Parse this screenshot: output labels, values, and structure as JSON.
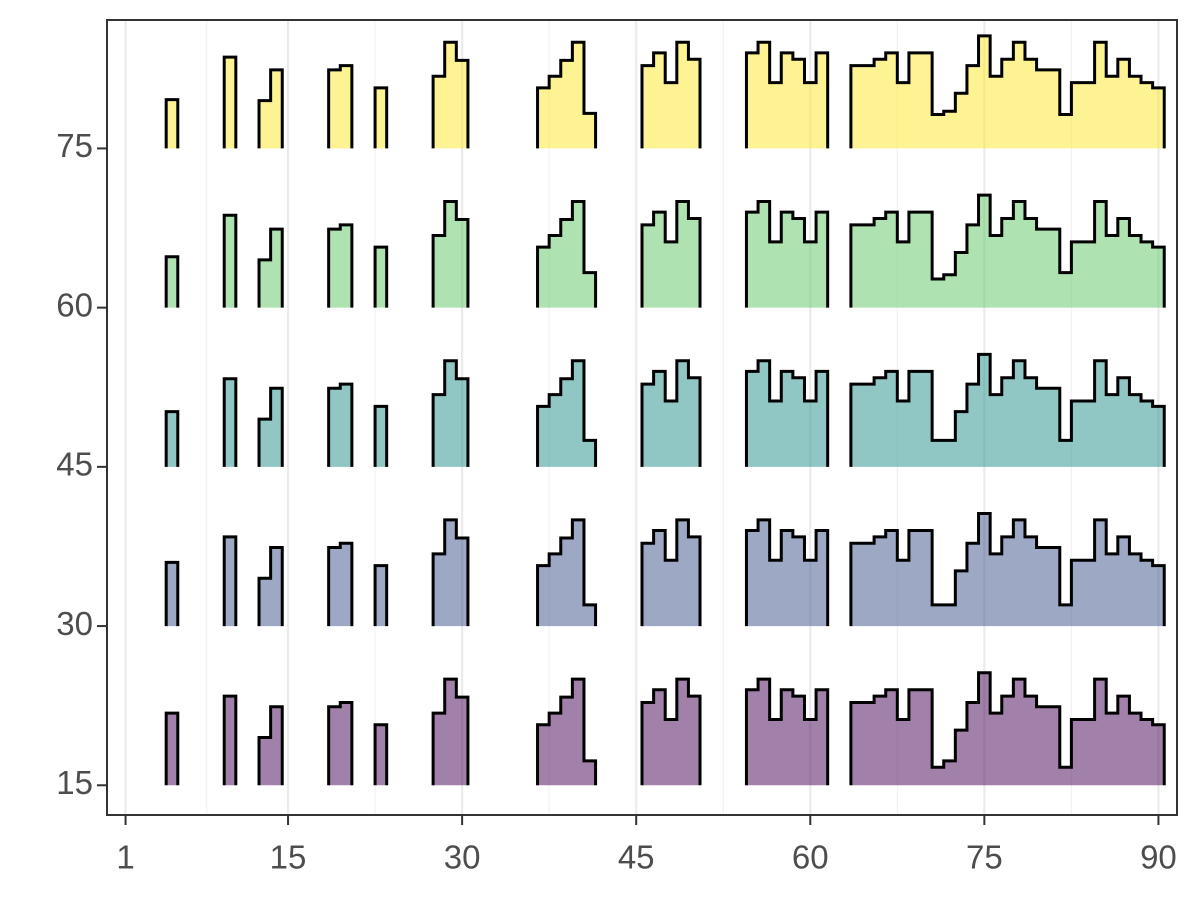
{
  "chart_data": {
    "type": "step",
    "x": [
      1,
      2,
      3,
      4,
      5,
      6,
      7,
      8,
      9,
      10,
      11,
      12,
      13,
      14,
      15,
      16,
      17,
      18,
      19,
      20,
      21,
      22,
      23,
      24,
      25,
      26,
      27,
      28,
      29,
      30,
      31,
      32,
      33,
      34,
      35,
      36,
      37,
      38,
      39,
      40,
      41,
      42,
      43,
      44,
      45,
      46,
      47,
      48,
      49,
      50,
      51,
      52,
      53,
      54,
      55,
      56,
      57,
      58,
      59,
      60,
      61,
      62,
      63,
      64,
      65,
      66,
      67,
      68,
      69,
      70,
      71,
      72,
      73,
      74,
      75,
      76,
      77,
      78,
      79,
      80,
      81,
      82,
      83,
      84,
      85,
      86,
      87,
      88,
      89,
      90
    ],
    "xlim": [
      -0.6,
      91.6
    ],
    "ylim": [
      12.2,
      87.1
    ],
    "xticks": [
      1,
      15,
      30,
      45,
      60,
      75,
      90
    ],
    "yticks": [
      15,
      30,
      45,
      60,
      75
    ],
    "grid": true,
    "series": [
      {
        "color": "#440154",
        "baseline": 15,
        "values": [
          null,
          null,
          null,
          null,
          21.8,
          null,
          null,
          null,
          null,
          23.4,
          null,
          null,
          19.5,
          22.4,
          null,
          null,
          null,
          null,
          22.4,
          22.8,
          null,
          null,
          20.7,
          null,
          null,
          null,
          null,
          21.8,
          25,
          23.3,
          null,
          null,
          null,
          null,
          null,
          null,
          20.7,
          21.8,
          23.3,
          25,
          17.3,
          null,
          null,
          null,
          null,
          22.8,
          24,
          21.2,
          25,
          23.4,
          null,
          null,
          null,
          null,
          24,
          25,
          21.2,
          24,
          23.4,
          21.2,
          24,
          null,
          null,
          22.8,
          22.8,
          23.4,
          24,
          21.2,
          24,
          24,
          16.7,
          17.3,
          20.2,
          22.8,
          25.6,
          21.8,
          23.4,
          25,
          23.4,
          22.4,
          22.4,
          16.7,
          21.2,
          21.2,
          25,
          21.8,
          23.4,
          21.8,
          21.2,
          20.7
        ]
      },
      {
        "color": "#3b528b",
        "baseline": 30,
        "values": [
          null,
          null,
          null,
          null,
          36,
          null,
          null,
          null,
          null,
          38.4,
          null,
          null,
          34.5,
          37.4,
          null,
          null,
          null,
          null,
          37.4,
          37.8,
          null,
          null,
          35.7,
          null,
          null,
          null,
          null,
          36.8,
          40,
          38.3,
          null,
          null,
          null,
          null,
          null,
          null,
          35.7,
          36.8,
          38.3,
          40,
          32,
          null,
          null,
          null,
          null,
          37.8,
          39,
          36.2,
          40,
          38.4,
          null,
          null,
          null,
          null,
          39,
          40,
          36.2,
          39,
          38.4,
          36.2,
          39,
          null,
          null,
          37.8,
          37.8,
          38.4,
          39,
          36.2,
          39,
          39,
          32,
          32,
          35.2,
          37.8,
          40.6,
          36.8,
          38.4,
          40,
          38.4,
          37.4,
          37.4,
          32,
          36.2,
          36.2,
          40,
          36.8,
          38.4,
          36.8,
          36.2,
          35.7
        ]
      },
      {
        "color": "#21908c",
        "baseline": 45,
        "values": [
          null,
          null,
          null,
          null,
          50.2,
          null,
          null,
          null,
          null,
          53.3,
          null,
          null,
          49.5,
          52.4,
          null,
          null,
          null,
          null,
          52.4,
          52.8,
          null,
          null,
          50.7,
          null,
          null,
          null,
          null,
          51.8,
          55,
          53.3,
          null,
          null,
          null,
          null,
          null,
          null,
          50.7,
          51.8,
          53.3,
          55,
          47.5,
          null,
          null,
          null,
          null,
          52.8,
          54,
          51.2,
          55,
          53.4,
          null,
          null,
          null,
          null,
          54,
          55,
          51.2,
          54,
          53.4,
          51.2,
          54,
          null,
          null,
          52.8,
          52.8,
          53.4,
          54,
          51.2,
          54,
          54,
          47.5,
          47.5,
          50.2,
          52.8,
          55.6,
          51.8,
          53.4,
          55,
          53.4,
          52.4,
          52.4,
          47.5,
          51.2,
          51.2,
          55,
          51.8,
          53.4,
          51.8,
          51.2,
          50.7
        ]
      },
      {
        "color": "#5dc863",
        "baseline": 60,
        "values": [
          null,
          null,
          null,
          null,
          64.8,
          null,
          null,
          null,
          null,
          68.7,
          null,
          null,
          64.5,
          67.4,
          null,
          null,
          null,
          null,
          67.4,
          67.8,
          null,
          null,
          65.7,
          null,
          null,
          null,
          null,
          66.8,
          70,
          68.3,
          null,
          null,
          null,
          null,
          null,
          null,
          65.7,
          66.8,
          68.3,
          70,
          63.3,
          null,
          null,
          null,
          null,
          67.8,
          69,
          66.2,
          70,
          68.4,
          null,
          null,
          null,
          null,
          69,
          70,
          66.2,
          69,
          68.4,
          66.2,
          69,
          null,
          null,
          67.8,
          67.8,
          68.4,
          69,
          66.2,
          69,
          69,
          62.7,
          63.1,
          65.2,
          67.8,
          70.6,
          66.8,
          68.4,
          70,
          68.4,
          67.4,
          67.4,
          63.3,
          66.2,
          66.2,
          70,
          66.8,
          68.4,
          66.8,
          66.2,
          65.7
        ]
      },
      {
        "color": "#fde725",
        "baseline": 75,
        "values": [
          null,
          null,
          null,
          null,
          79.6,
          null,
          null,
          null,
          null,
          83.6,
          null,
          null,
          79.5,
          82.4,
          null,
          null,
          null,
          null,
          82.4,
          82.8,
          null,
          null,
          80.7,
          null,
          null,
          null,
          null,
          81.8,
          85,
          83.3,
          null,
          null,
          null,
          null,
          null,
          null,
          80.7,
          81.8,
          83.3,
          85,
          78.3,
          null,
          null,
          null,
          null,
          82.8,
          84,
          81.2,
          85,
          83.4,
          null,
          null,
          null,
          null,
          84,
          85,
          81.2,
          84,
          83.4,
          81.2,
          84,
          null,
          null,
          82.8,
          82.8,
          83.4,
          84,
          81.2,
          84,
          84,
          78.2,
          78.5,
          80.2,
          82.8,
          85.6,
          81.8,
          83.4,
          85,
          83.4,
          82.4,
          82.4,
          78.2,
          81.2,
          81.2,
          85,
          81.8,
          83.4,
          81.8,
          81.2,
          80.7
        ]
      }
    ]
  }
}
